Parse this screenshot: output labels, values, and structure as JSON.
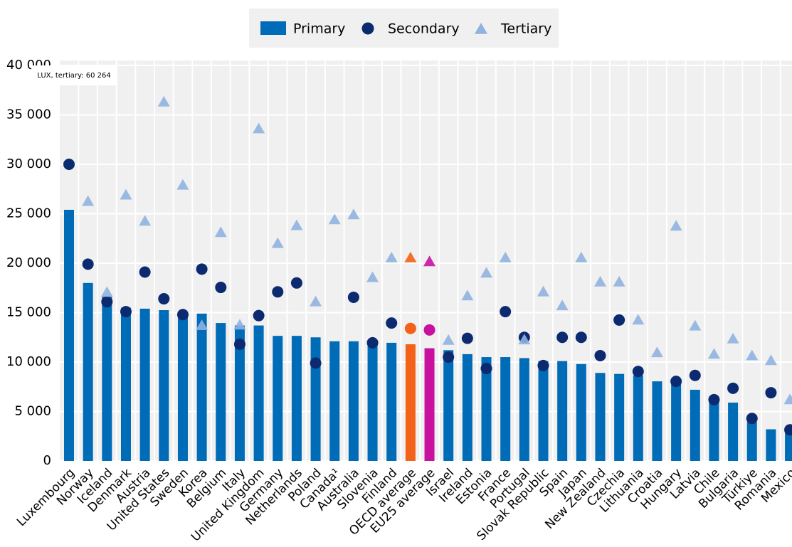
{
  "chart_data": {
    "type": "bar-dot",
    "annotation": "LUX, tertiary: 60 264",
    "categories": [
      "Luxembourg",
      "Norway",
      "Iceland",
      "Denmark",
      "Austria",
      "United States",
      "Sweden",
      "Korea",
      "Belgium",
      "Italy",
      "United Kingdom",
      "Germany",
      "Netherlands",
      "Poland",
      "Canada¹",
      "Australia",
      "Slovenia",
      "Finland",
      "OECD average",
      "EU25 average",
      "Israel",
      "Ireland",
      "Estonia",
      "France",
      "Portugal",
      "Slovak Republic",
      "Spain",
      "Japan",
      "New Zealand",
      "Czechia",
      "Lithuania",
      "Croatia",
      "Hungary",
      "Latvia",
      "Chile",
      "Bulgaria",
      "Türkiye",
      "Romania",
      "Mexico"
    ],
    "series": [
      {
        "name": "Primary",
        "mark": "bar",
        "color": "#006bb6",
        "values": [
          25400,
          18000,
          16600,
          15500,
          15400,
          15250,
          15000,
          14900,
          13950,
          13700,
          13700,
          12650,
          12650,
          12500,
          12100,
          12100,
          12000,
          11950,
          11800,
          11400,
          11200,
          10800,
          10500,
          10500,
          10400,
          10100,
          10100,
          9800,
          8900,
          8800,
          8650,
          8050,
          8000,
          7200,
          6200,
          5900,
          3950,
          3200,
          3000
        ]
      },
      {
        "name": "Secondary",
        "mark": "circle",
        "color": "#0b2a6f",
        "values": [
          30000,
          19900,
          16100,
          15100,
          19100,
          16400,
          14800,
          19400,
          17550,
          11800,
          14700,
          17100,
          18000,
          9900,
          null,
          16550,
          11950,
          13950,
          13400,
          13250,
          10500,
          12400,
          9350,
          15100,
          12500,
          9650,
          12500,
          12500,
          10650,
          14250,
          9050,
          null,
          8050,
          8650,
          6200,
          7350,
          4300,
          6900,
          3150
        ]
      },
      {
        "name": "Tertiary",
        "mark": "triangle",
        "color": "#8fb2e0",
        "values": [
          null,
          26250,
          17050,
          26900,
          24250,
          36300,
          27900,
          13700,
          23100,
          13750,
          33600,
          22000,
          23800,
          16100,
          24400,
          24900,
          18550,
          20550,
          20550,
          20150,
          12200,
          16700,
          19000,
          20550,
          12250,
          17100,
          15700,
          20550,
          18100,
          18100,
          14250,
          10950,
          23750,
          13650,
          10800,
          12350,
          10650,
          10150,
          6200
        ]
      }
    ],
    "highlights": [
      {
        "category": "OECD average",
        "color": "#f26218"
      },
      {
        "category": "EU25 average",
        "color": "#c8129f"
      }
    ],
    "ylim": [
      0,
      40000
    ],
    "yticks": [
      0,
      {
        "value": 5000,
        "label": "5 000"
      },
      {
        "value": 10000,
        "label": "10 000"
      },
      {
        "value": 15000,
        "label": "15 000"
      },
      {
        "value": 20000,
        "label": "20 000"
      },
      {
        "value": 25000,
        "label": "25 000"
      },
      {
        "value": 30000,
        "label": "30 000"
      },
      {
        "value": 35000,
        "label": "35 000"
      },
      {
        "value": 40000,
        "label": "40 000"
      }
    ],
    "grid": true,
    "legend": "top"
  }
}
